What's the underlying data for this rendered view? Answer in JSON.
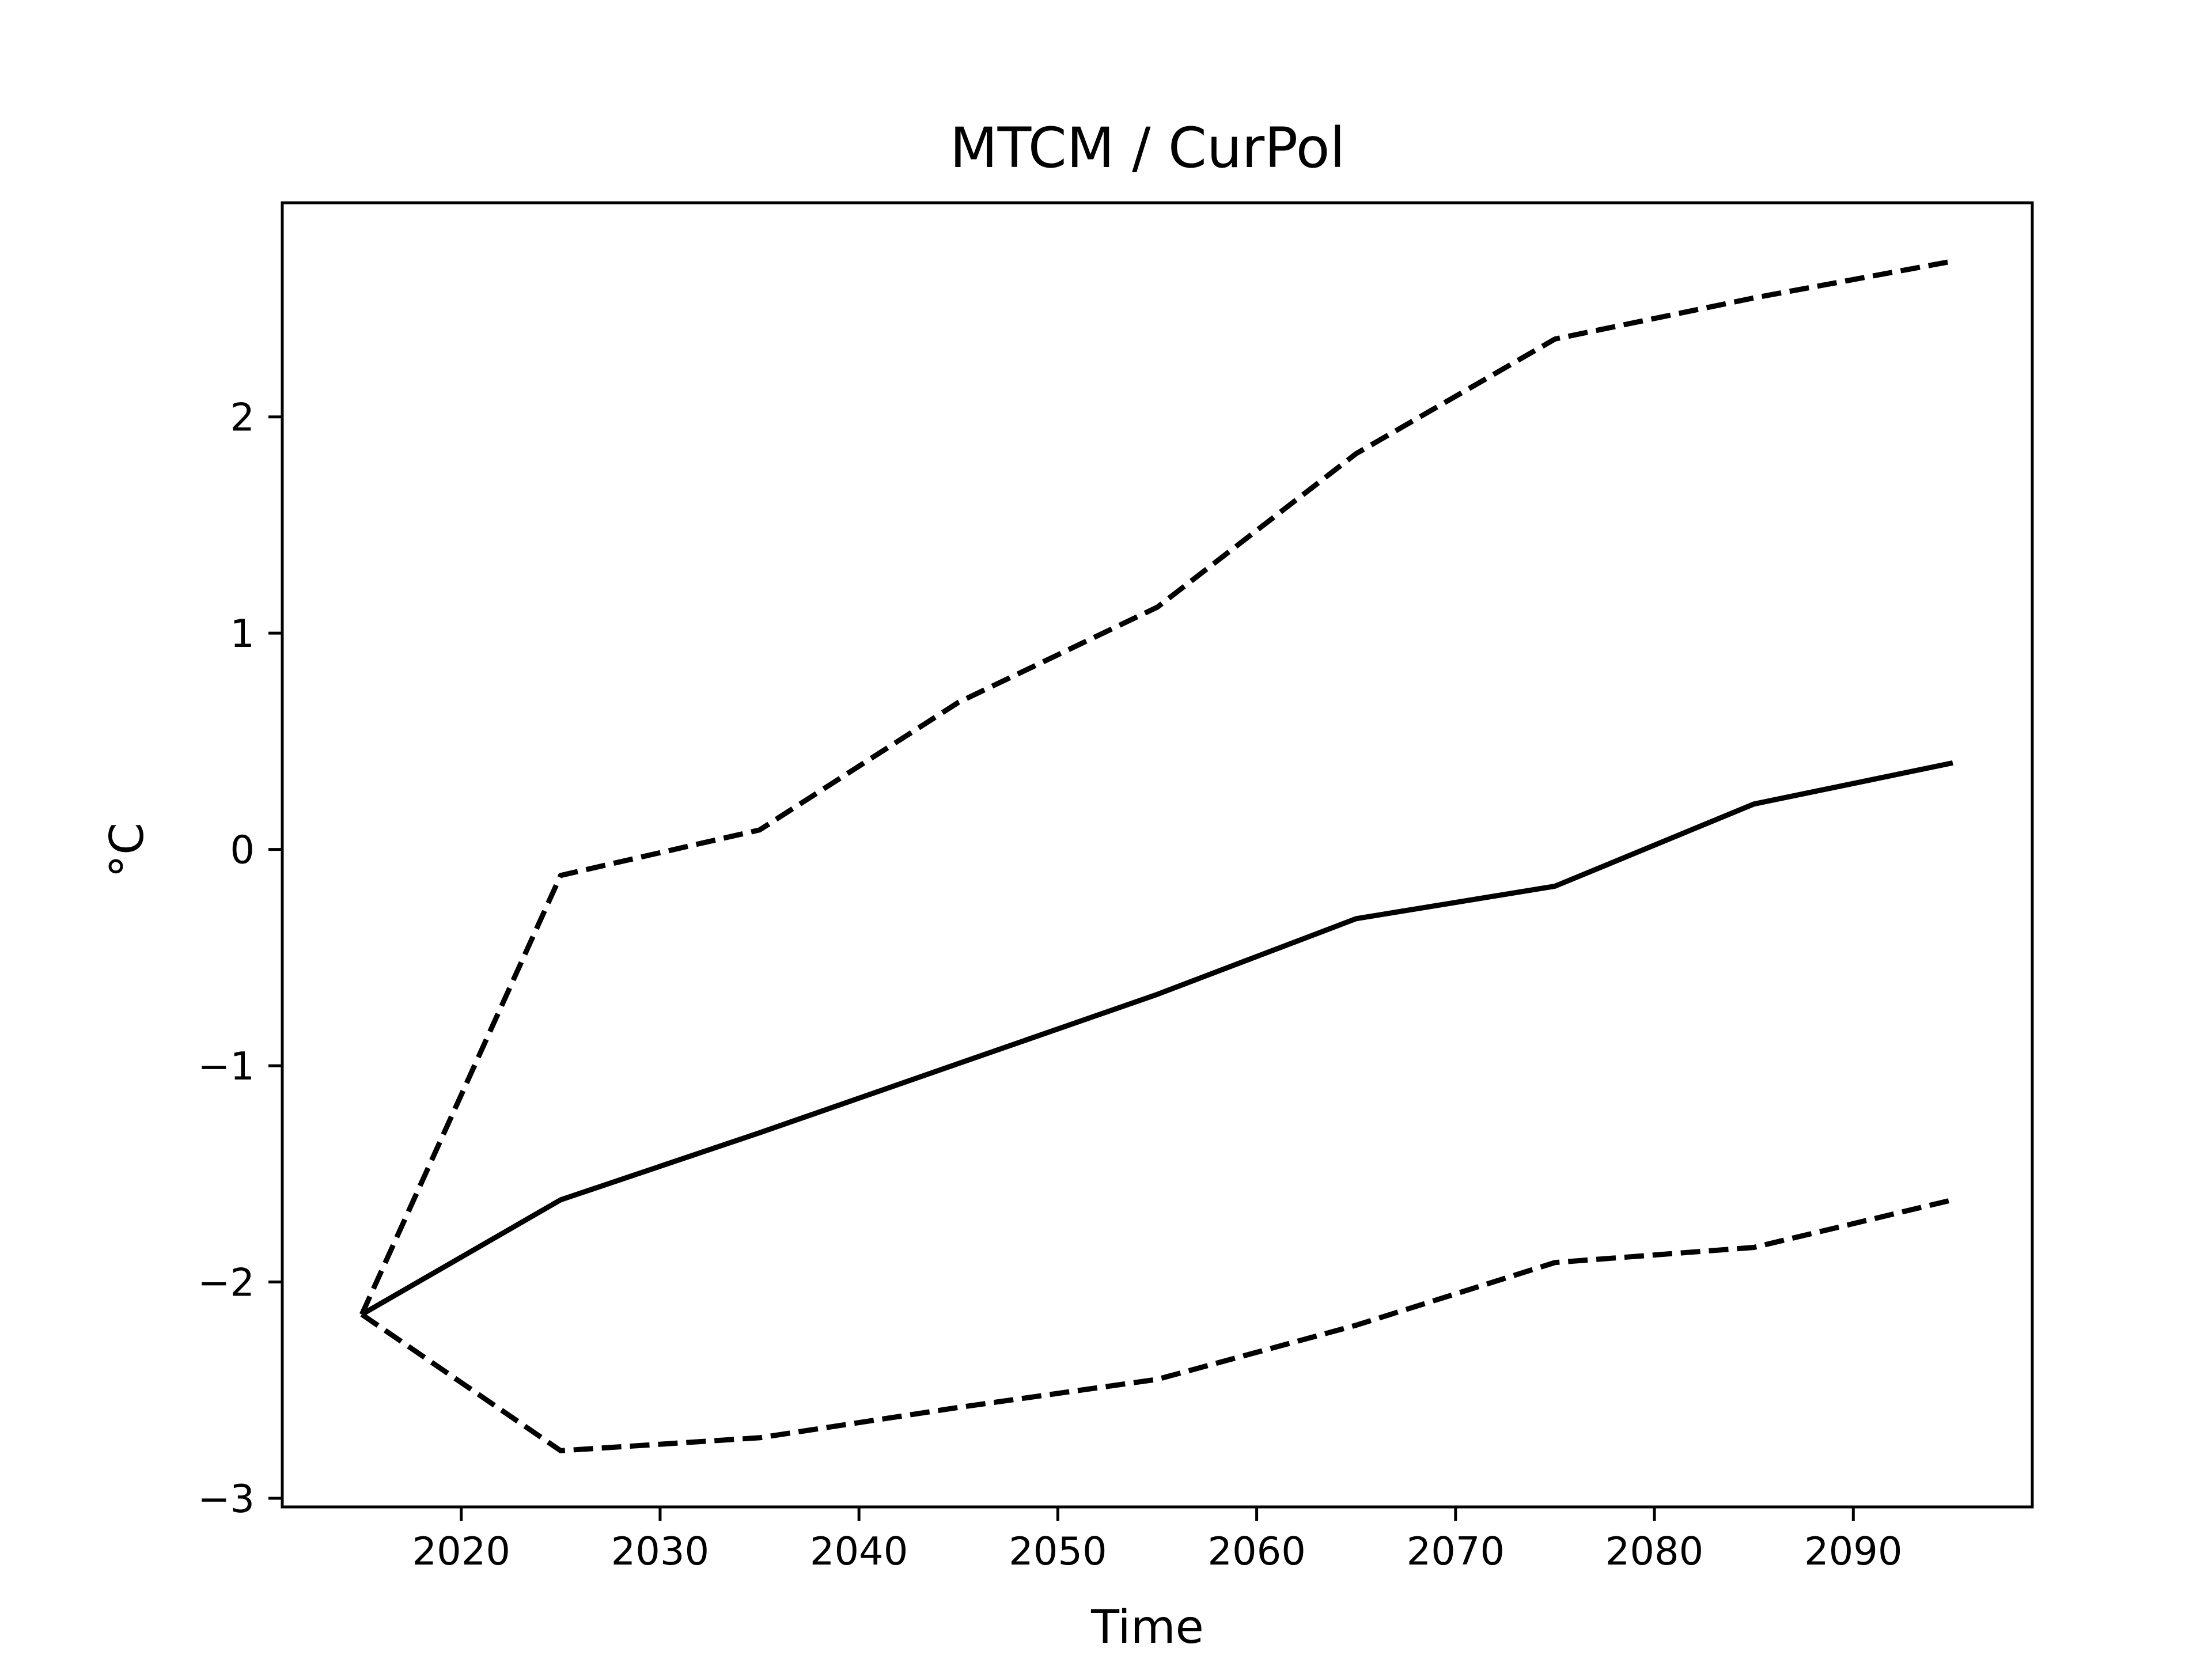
{
  "chart_data": {
    "type": "line",
    "title": "MTCM / CurPol",
    "xlabel": "Time",
    "ylabel": "°C",
    "x": [
      2015,
      2025,
      2035,
      2045,
      2055,
      2065,
      2075,
      2085,
      2095
    ],
    "series": [
      {
        "style": "solid",
        "values": [
          -2.15,
          -1.62,
          -1.31,
          -0.99,
          -0.67,
          -0.32,
          -0.17,
          0.21,
          0.4
        ]
      },
      {
        "style": "dashed",
        "values": [
          -2.15,
          -0.12,
          0.09,
          0.68,
          1.12,
          1.83,
          2.36,
          2.55,
          2.72
        ]
      },
      {
        "style": "dashed",
        "values": [
          -2.15,
          -2.78,
          -2.72,
          -2.58,
          -2.45,
          -2.2,
          -1.91,
          -1.84,
          -1.62
        ]
      }
    ],
    "xticks": [
      2020,
      2030,
      2040,
      2050,
      2060,
      2070,
      2080,
      2090
    ],
    "xtick_labels": [
      "2020",
      "2030",
      "2040",
      "2050",
      "2060",
      "2070",
      "2080",
      "2090"
    ],
    "yticks": [
      -3,
      -2,
      -1,
      0,
      1,
      2
    ],
    "ytick_labels": [
      "−3",
      "−2",
      "−1",
      "0",
      "1",
      "2"
    ],
    "xlim": [
      2011,
      2099
    ],
    "ylim": [
      -3.04,
      2.99
    ],
    "grid": false,
    "colors": {
      "line": "#000000",
      "background": "#ffffff"
    }
  }
}
